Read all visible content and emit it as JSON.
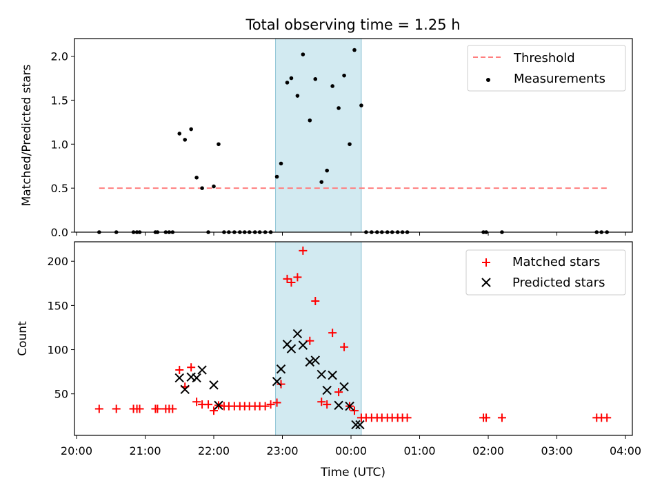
{
  "title": "Total observing time = 1.25 h",
  "chart_data": [
    {
      "type": "scatter",
      "panel": "top",
      "ylabel": "Matched/Predicted stars",
      "xlabel": "",
      "x_unit": "hours (UTC, continuing past midnight)",
      "xlim": [
        19.97,
        28.1
      ],
      "ylim": [
        0,
        2.2
      ],
      "yticks": [
        0.0,
        0.5,
        1.0,
        1.5,
        2.0
      ],
      "ytick_labels": [
        "0.0",
        "0.5",
        "1.0",
        "1.5",
        "2.0"
      ],
      "highlight_span": {
        "from": 22.9,
        "to": 24.15,
        "color": "#add8e6"
      },
      "legend": {
        "placement": "top-right",
        "entries": [
          "Threshold",
          "Measurements"
        ]
      },
      "series": [
        {
          "name": "Threshold",
          "style": "dashed-line",
          "color": "#ff7f7f",
          "x": [
            20.33,
            27.75
          ],
          "y": [
            0.5,
            0.5
          ]
        },
        {
          "name": "Measurements",
          "style": "dot",
          "color": "#000000",
          "x": [
            20.33,
            20.58,
            20.83,
            20.88,
            20.92,
            21.15,
            21.18,
            21.3,
            21.35,
            21.4,
            21.5,
            21.58,
            21.67,
            21.75,
            21.83,
            21.92,
            22.0,
            22.07,
            22.15,
            22.22,
            22.3,
            22.38,
            22.45,
            22.52,
            22.6,
            22.67,
            22.75,
            22.83,
            22.92,
            22.98,
            23.07,
            23.13,
            23.22,
            23.3,
            23.4,
            23.48,
            23.57,
            23.65,
            23.73,
            23.82,
            23.9,
            23.98,
            24.05,
            24.15,
            24.22,
            24.3,
            24.38,
            24.45,
            24.53,
            24.6,
            24.68,
            24.75,
            24.82,
            25.93,
            25.97,
            26.2,
            27.58,
            27.65,
            27.73
          ],
          "y": [
            0,
            0,
            0,
            0,
            0,
            0,
            0,
            0,
            0,
            0,
            1.12,
            1.05,
            1.17,
            0.62,
            0.5,
            0,
            0.52,
            1.0,
            0,
            0,
            0,
            0,
            0,
            0,
            0,
            0,
            0,
            0,
            0.63,
            0.78,
            1.7,
            1.75,
            1.55,
            2.02,
            1.27,
            1.74,
            0.57,
            0.7,
            1.66,
            1.41,
            1.78,
            1.0,
            2.07,
            1.44,
            0,
            0,
            0,
            0,
            0,
            0,
            0,
            0,
            0,
            0,
            0,
            0,
            0,
            0,
            0
          ]
        }
      ]
    },
    {
      "type": "scatter",
      "panel": "bottom",
      "ylabel": "Count",
      "xlabel": "Time (UTC)",
      "x_unit": "hours (UTC, continuing past midnight)",
      "xlim": [
        19.97,
        28.1
      ],
      "ylim": [
        3,
        222
      ],
      "yticks": [
        50,
        100,
        150,
        200
      ],
      "ytick_labels": [
        "50",
        "100",
        "150",
        "200"
      ],
      "xticks": [
        20,
        21,
        22,
        23,
        24,
        25,
        26,
        27,
        28
      ],
      "xtick_labels": [
        "20:00",
        "21:00",
        "22:00",
        "23:00",
        "00:00",
        "01:00",
        "02:00",
        "03:00",
        "04:00"
      ],
      "highlight_span": {
        "from": 22.9,
        "to": 24.15,
        "color": "#add8e6"
      },
      "legend": {
        "placement": "top-right",
        "entries": [
          "Matched stars",
          "Predicted stars"
        ]
      },
      "series": [
        {
          "name": "Matched stars",
          "marker": "+",
          "color": "#ff0000",
          "x": [
            20.33,
            20.58,
            20.83,
            20.88,
            20.92,
            21.15,
            21.18,
            21.3,
            21.35,
            21.4,
            21.5,
            21.58,
            21.67,
            21.75,
            21.83,
            21.92,
            22.0,
            22.07,
            22.15,
            22.22,
            22.3,
            22.38,
            22.45,
            22.52,
            22.6,
            22.67,
            22.75,
            22.83,
            22.92,
            22.98,
            23.07,
            23.13,
            23.22,
            23.3,
            23.4,
            23.48,
            23.57,
            23.65,
            23.73,
            23.82,
            23.9,
            23.98,
            24.05,
            24.15,
            24.22,
            24.3,
            24.38,
            24.45,
            24.53,
            24.6,
            24.68,
            24.75,
            24.82,
            25.93,
            25.97,
            26.2,
            27.58,
            27.65,
            27.73
          ],
          "y": [
            33,
            33,
            33,
            33,
            33,
            33,
            33,
            33,
            33,
            33,
            77,
            58,
            80,
            41,
            38,
            38,
            31,
            37,
            36,
            36,
            36,
            36,
            36,
            36,
            36,
            36,
            36,
            38,
            40,
            61,
            180,
            176,
            182,
            212,
            110,
            155,
            41,
            38,
            119,
            52,
            103,
            36,
            31,
            23,
            23,
            23,
            23,
            23,
            23,
            23,
            23,
            23,
            23,
            23,
            23,
            23,
            23,
            23,
            23
          ]
        },
        {
          "name": "Predicted stars",
          "marker": "x",
          "color": "#000000",
          "x": [
            21.5,
            21.58,
            21.67,
            21.75,
            21.83,
            22.0,
            22.07,
            22.92,
            22.98,
            23.07,
            23.13,
            23.22,
            23.3,
            23.4,
            23.48,
            23.57,
            23.65,
            23.73,
            23.82,
            23.9,
            23.98,
            24.07,
            24.13
          ],
          "y": [
            68,
            55,
            69,
            68,
            77,
            60,
            37,
            64,
            78,
            106,
            101,
            118,
            105,
            86,
            88,
            72,
            54,
            71,
            37,
            58,
            36,
            15,
            15
          ]
        }
      ]
    }
  ]
}
